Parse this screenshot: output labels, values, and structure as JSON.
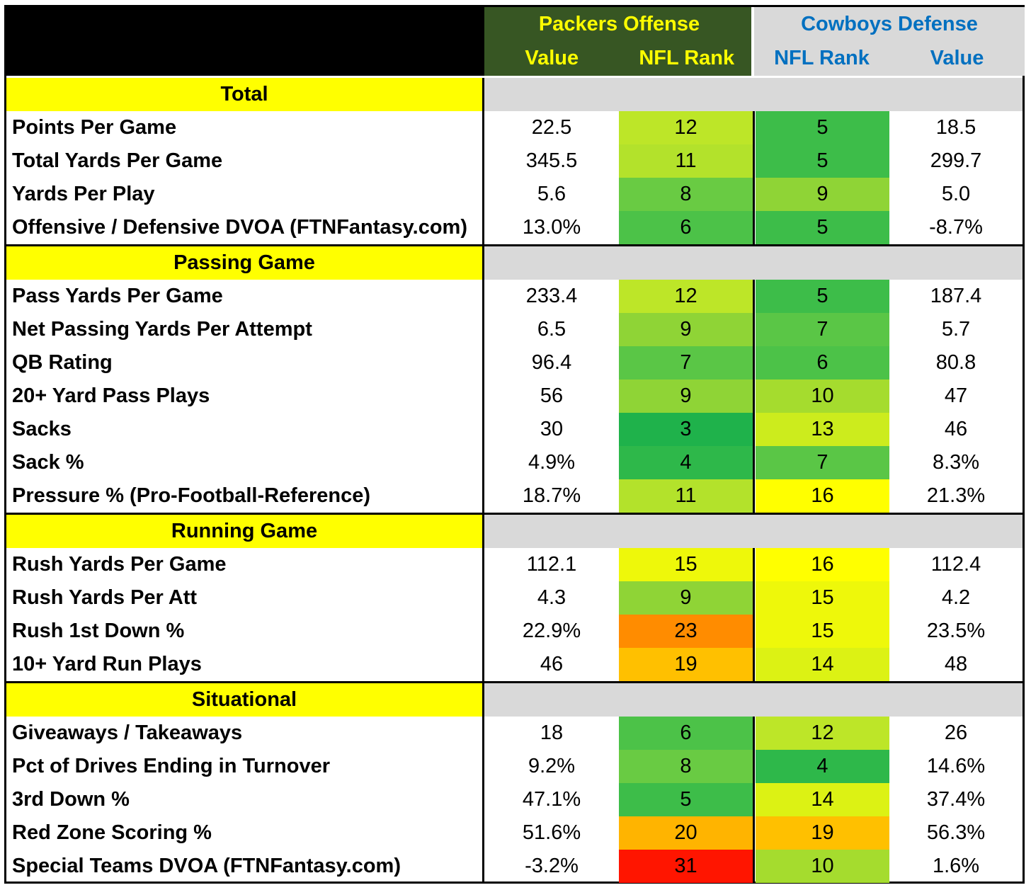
{
  "header": {
    "packers_title": "Packers Offense",
    "packers_value": "Value",
    "packers_rank": "NFL Rank",
    "cowboys_title": "Cowboys Defense",
    "cowboys_rank": "NFL Rank",
    "cowboys_value": "Value"
  },
  "colors": {
    "packers_header_bg": "#375623",
    "packers_header_text": "#ffff00",
    "cowboys_header_bg": "#d9d9d9",
    "cowboys_header_text": "#0070c0",
    "section_label_bg": "#ffff00",
    "section_fill_bg": "#d9d9d9",
    "rank_scale": {
      "3": "#1fb24b",
      "4": "#2eb84a",
      "5": "#3dbd49",
      "6": "#4cc248",
      "7": "#5ac646",
      "8": "#69cb43",
      "9": "#8fd436",
      "10": "#a5dc2e",
      "11": "#b3e22b",
      "12": "#bde628",
      "13": "#ccec1d",
      "14": "#dcf214",
      "15": "#eef80a",
      "16": "#ffff00",
      "19": "#ffc000",
      "20": "#ffb400",
      "23": "#ff8c00",
      "31": "#ff1500"
    }
  },
  "sections": [
    {
      "title": "Total",
      "rows": [
        {
          "label": "Points Per Game",
          "packers_value": "22.5",
          "packers_rank": "12",
          "cowboys_rank": "5",
          "cowboys_value": "18.5"
        },
        {
          "label": "Total Yards Per Game",
          "packers_value": "345.5",
          "packers_rank": "11",
          "cowboys_rank": "5",
          "cowboys_value": "299.7"
        },
        {
          "label": "Yards Per Play",
          "packers_value": "5.6",
          "packers_rank": "8",
          "cowboys_rank": "9",
          "cowboys_value": "5.0"
        },
        {
          "label": "Offensive / Defensive DVOA (FTNFantasy.com)",
          "packers_value": "13.0%",
          "packers_rank": "6",
          "cowboys_rank": "5",
          "cowboys_value": "-8.7%"
        }
      ]
    },
    {
      "title": "Passing Game",
      "rows": [
        {
          "label": "Pass Yards Per Game",
          "packers_value": "233.4",
          "packers_rank": "12",
          "cowboys_rank": "5",
          "cowboys_value": "187.4"
        },
        {
          "label": "Net Passing Yards Per Attempt",
          "packers_value": "6.5",
          "packers_rank": "9",
          "cowboys_rank": "7",
          "cowboys_value": "5.7"
        },
        {
          "label": "QB Rating",
          "packers_value": "96.4",
          "packers_rank": "7",
          "cowboys_rank": "6",
          "cowboys_value": "80.8"
        },
        {
          "label": "20+ Yard Pass Plays",
          "packers_value": "56",
          "packers_rank": "9",
          "cowboys_rank": "10",
          "cowboys_value": "47"
        },
        {
          "label": "Sacks",
          "packers_value": "30",
          "packers_rank": "3",
          "cowboys_rank": "13",
          "cowboys_value": "46"
        },
        {
          "label": "Sack %",
          "packers_value": "4.9%",
          "packers_rank": "4",
          "cowboys_rank": "7",
          "cowboys_value": "8.3%"
        },
        {
          "label": "Pressure % (Pro-Football-Reference)",
          "packers_value": "18.7%",
          "packers_rank": "11",
          "cowboys_rank": "16",
          "cowboys_value": "21.3%"
        }
      ]
    },
    {
      "title": "Running Game",
      "rows": [
        {
          "label": "Rush Yards Per Game",
          "packers_value": "112.1",
          "packers_rank": "15",
          "cowboys_rank": "16",
          "cowboys_value": "112.4"
        },
        {
          "label": "Rush Yards Per Att",
          "packers_value": "4.3",
          "packers_rank": "9",
          "cowboys_rank": "15",
          "cowboys_value": "4.2"
        },
        {
          "label": "Rush 1st Down %",
          "packers_value": "22.9%",
          "packers_rank": "23",
          "cowboys_rank": "15",
          "cowboys_value": "23.5%"
        },
        {
          "label": "10+ Yard Run Plays",
          "packers_value": "46",
          "packers_rank": "19",
          "cowboys_rank": "14",
          "cowboys_value": "48"
        }
      ]
    },
    {
      "title": "Situational",
      "rows": [
        {
          "label": "Giveaways / Takeaways",
          "packers_value": "18",
          "packers_rank": "6",
          "cowboys_rank": "12",
          "cowboys_value": "26"
        },
        {
          "label": "Pct of Drives Ending in Turnover",
          "packers_value": "9.2%",
          "packers_rank": "8",
          "cowboys_rank": "4",
          "cowboys_value": "14.6%"
        },
        {
          "label": "3rd Down %",
          "packers_value": "47.1%",
          "packers_rank": "5",
          "cowboys_rank": "14",
          "cowboys_value": "37.4%"
        },
        {
          "label": "Red Zone Scoring %",
          "packers_value": "51.6%",
          "packers_rank": "20",
          "cowboys_rank": "19",
          "cowboys_value": "56.3%"
        },
        {
          "label": "Special Teams DVOA  (FTNFantasy.com)",
          "packers_value": "-3.2%",
          "packers_rank": "31",
          "cowboys_rank": "10",
          "cowboys_value": "1.6%"
        }
      ]
    }
  ]
}
